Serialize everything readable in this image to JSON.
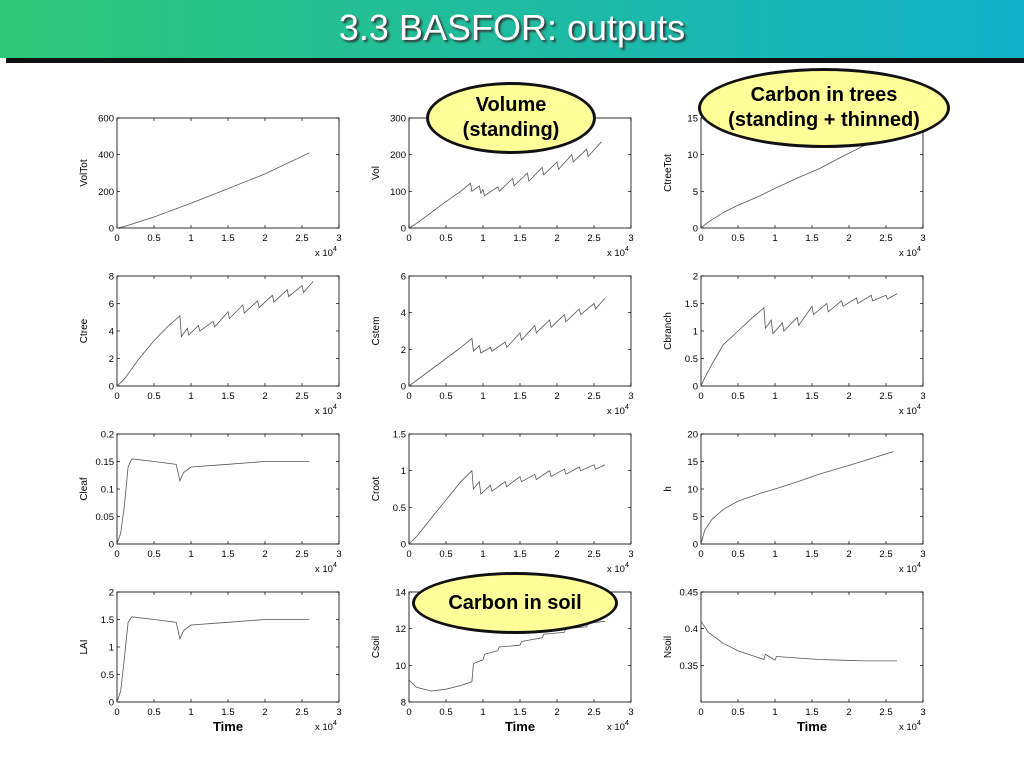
{
  "slide": {
    "title": "3.3 BASFOR: outputs",
    "header_color_left": "#2ec878",
    "header_color_right": "#10b0c8",
    "callouts": [
      {
        "id": "volume",
        "text": "Volume\n(standing)"
      },
      {
        "id": "carbon-trees",
        "text": "Carbon in trees\n(standing + thinned)"
      },
      {
        "id": "carbon-soil",
        "text": "Carbon in soil"
      }
    ]
  },
  "chart_data": [
    {
      "type": "line",
      "ylabel": "VolTot",
      "xlabel": "",
      "xlim": [
        0,
        3
      ],
      "x_multiplier": "x 10^4",
      "ylim": [
        0,
        600
      ],
      "yticks": [
        0,
        200,
        400,
        600
      ],
      "series": [
        {
          "x": [
            0,
            0.1,
            0.5,
            1,
            1.5,
            2,
            2.6
          ],
          "y": [
            0,
            8,
            60,
            135,
            215,
            295,
            410
          ]
        }
      ]
    },
    {
      "type": "line",
      "ylabel": "Vol",
      "xlabel": "",
      "xlim": [
        0,
        3
      ],
      "x_multiplier": "x 10^4",
      "ylim": [
        0,
        300
      ],
      "yticks": [
        0,
        100,
        200,
        300
      ],
      "series": [
        {
          "x": [
            0,
            0.1,
            0.3,
            0.5,
            0.7,
            0.83,
            0.85,
            0.95,
            0.97,
            1.0,
            1.02,
            1.2,
            1.22,
            1.4,
            1.42,
            1.6,
            1.62,
            1.8,
            1.82,
            2.0,
            2.02,
            2.2,
            2.22,
            2.4,
            2.42,
            2.6
          ],
          "y": [
            0,
            12,
            42,
            72,
            100,
            122,
            100,
            115,
            95,
            105,
            88,
            112,
            100,
            135,
            115,
            150,
            128,
            165,
            145,
            180,
            160,
            200,
            180,
            215,
            195,
            235
          ]
        }
      ]
    },
    {
      "type": "line",
      "ylabel": "CtreeTot",
      "xlabel": "",
      "xlim": [
        0,
        3
      ],
      "x_multiplier": "x 10^4",
      "ylim": [
        0,
        15
      ],
      "yticks": [
        0,
        5,
        10,
        15
      ],
      "series": [
        {
          "x": [
            0,
            0.1,
            0.3,
            0.5,
            0.8,
            1.0,
            1.3,
            1.6,
            1.9,
            2.2,
            2.6
          ],
          "y": [
            0,
            0.8,
            2.1,
            3.1,
            4.4,
            5.4,
            6.8,
            8.1,
            9.7,
            11.2,
            12.3
          ]
        }
      ]
    },
    {
      "type": "line",
      "ylabel": "Ctree",
      "xlabel": "",
      "xlim": [
        0,
        3
      ],
      "x_multiplier": "x 10^4",
      "ylim": [
        0,
        8
      ],
      "yticks": [
        0,
        2,
        4,
        6,
        8
      ],
      "series": [
        {
          "x": [
            0,
            0.1,
            0.3,
            0.5,
            0.7,
            0.85,
            0.87,
            0.95,
            0.97,
            1.1,
            1.12,
            1.3,
            1.32,
            1.5,
            1.52,
            1.7,
            1.72,
            1.9,
            1.92,
            2.1,
            2.12,
            2.3,
            2.32,
            2.5,
            2.52,
            2.65
          ],
          "y": [
            0,
            0.5,
            2.0,
            3.3,
            4.4,
            5.1,
            3.6,
            4.2,
            3.7,
            4.4,
            4.0,
            4.7,
            4.3,
            5.4,
            4.9,
            5.9,
            5.3,
            6.2,
            5.7,
            6.6,
            6.1,
            7.0,
            6.5,
            7.3,
            6.8,
            7.6
          ]
        }
      ]
    },
    {
      "type": "line",
      "ylabel": "Cstem",
      "xlabel": "",
      "xlim": [
        0,
        3
      ],
      "x_multiplier": "x 10^4",
      "ylim": [
        0,
        6
      ],
      "yticks": [
        0,
        2,
        4,
        6
      ],
      "series": [
        {
          "x": [
            0,
            0.1,
            0.3,
            0.5,
            0.7,
            0.85,
            0.87,
            0.95,
            0.97,
            1.1,
            1.12,
            1.3,
            1.32,
            1.5,
            1.52,
            1.7,
            1.72,
            1.9,
            1.92,
            2.1,
            2.12,
            2.3,
            2.32,
            2.5,
            2.52,
            2.65
          ],
          "y": [
            0,
            0.3,
            0.9,
            1.5,
            2.1,
            2.6,
            1.9,
            2.2,
            1.8,
            2.1,
            1.9,
            2.4,
            2.1,
            2.9,
            2.5,
            3.3,
            2.9,
            3.6,
            3.2,
            3.9,
            3.5,
            4.2,
            3.9,
            4.5,
            4.2,
            4.8
          ]
        }
      ]
    },
    {
      "type": "line",
      "ylabel": "Cbranch",
      "xlabel": "",
      "xlim": [
        0,
        3
      ],
      "x_multiplier": "x 10^4",
      "ylim": [
        0,
        2
      ],
      "yticks": [
        0,
        0.5,
        1,
        1.5,
        2
      ],
      "series": [
        {
          "x": [
            0,
            0.05,
            0.15,
            0.3,
            0.5,
            0.7,
            0.85,
            0.87,
            0.95,
            0.97,
            1.1,
            1.12,
            1.3,
            1.32,
            1.5,
            1.52,
            1.7,
            1.72,
            1.9,
            1.92,
            2.1,
            2.12,
            2.3,
            2.32,
            2.5,
            2.52,
            2.65
          ],
          "y": [
            0,
            0.15,
            0.4,
            0.75,
            1.0,
            1.25,
            1.42,
            1.05,
            1.2,
            0.95,
            1.15,
            1.0,
            1.25,
            1.1,
            1.45,
            1.3,
            1.5,
            1.35,
            1.55,
            1.45,
            1.6,
            1.5,
            1.65,
            1.55,
            1.65,
            1.58,
            1.68
          ]
        }
      ]
    },
    {
      "type": "line",
      "ylabel": "Cleaf",
      "xlabel": "",
      "xlim": [
        0,
        3
      ],
      "x_multiplier": "x 10^4",
      "ylim": [
        0,
        0.2
      ],
      "yticks": [
        0,
        0.05,
        0.1,
        0.15,
        0.2
      ],
      "series": [
        {
          "x": [
            0,
            0.05,
            0.1,
            0.15,
            0.2,
            0.5,
            0.8,
            0.85,
            0.9,
            1.0,
            1.5,
            2.0,
            2.6
          ],
          "y": [
            0,
            0.02,
            0.07,
            0.14,
            0.155,
            0.15,
            0.145,
            0.115,
            0.13,
            0.14,
            0.145,
            0.15,
            0.15
          ]
        }
      ]
    },
    {
      "type": "line",
      "ylabel": "Croot",
      "xlabel": "",
      "xlim": [
        0,
        3
      ],
      "x_multiplier": "x 10^4",
      "ylim": [
        0,
        1.5
      ],
      "yticks": [
        0,
        0.5,
        1,
        1.5
      ],
      "series": [
        {
          "x": [
            0,
            0.1,
            0.3,
            0.5,
            0.7,
            0.85,
            0.87,
            0.95,
            0.97,
            1.1,
            1.12,
            1.3,
            1.32,
            1.5,
            1.52,
            1.7,
            1.72,
            1.9,
            1.92,
            2.1,
            2.12,
            2.3,
            2.32,
            2.5,
            2.52,
            2.65
          ],
          "y": [
            0,
            0.1,
            0.35,
            0.6,
            0.85,
            1.0,
            0.75,
            0.85,
            0.68,
            0.8,
            0.72,
            0.85,
            0.78,
            0.92,
            0.85,
            0.95,
            0.88,
            1.0,
            0.92,
            1.02,
            0.95,
            1.05,
            1.0,
            1.08,
            1.02,
            1.08
          ]
        }
      ]
    },
    {
      "type": "line",
      "ylabel": "h",
      "xlabel": "",
      "xlim": [
        0,
        3
      ],
      "x_multiplier": "x 10^4",
      "ylim": [
        0,
        20
      ],
      "yticks": [
        0,
        5,
        10,
        15,
        20
      ],
      "series": [
        {
          "x": [
            0,
            0.05,
            0.15,
            0.3,
            0.5,
            0.8,
            1.0,
            1.3,
            1.6,
            2.0,
            2.6
          ],
          "y": [
            0,
            2.5,
            4.5,
            6.3,
            7.8,
            9.2,
            10.0,
            11.3,
            12.7,
            14.3,
            16.8
          ]
        }
      ]
    },
    {
      "type": "line",
      "ylabel": "LAI",
      "xlabel": "Time",
      "xlim": [
        0,
        3
      ],
      "x_multiplier": "x 10^4",
      "ylim": [
        0,
        2
      ],
      "yticks": [
        0,
        0.5,
        1,
        1.5,
        2
      ],
      "series": [
        {
          "x": [
            0,
            0.05,
            0.1,
            0.15,
            0.2,
            0.5,
            0.8,
            0.85,
            0.9,
            1.0,
            1.5,
            2.0,
            2.6
          ],
          "y": [
            0,
            0.2,
            0.8,
            1.45,
            1.55,
            1.5,
            1.45,
            1.15,
            1.3,
            1.4,
            1.45,
            1.5,
            1.5
          ]
        }
      ]
    },
    {
      "type": "line",
      "ylabel": "Csoil",
      "xlabel": "Time",
      "xlim": [
        0,
        3
      ],
      "x_multiplier": "x 10^4",
      "ylim": [
        8,
        14
      ],
      "yticks": [
        8,
        10,
        12,
        14
      ],
      "series": [
        {
          "x": [
            0,
            0.1,
            0.3,
            0.5,
            0.7,
            0.85,
            0.87,
            1.0,
            1.02,
            1.2,
            1.22,
            1.5,
            1.52,
            1.8,
            1.82,
            2.1,
            2.12,
            2.4,
            2.42,
            2.65
          ],
          "y": [
            9.2,
            8.8,
            8.6,
            8.7,
            8.9,
            9.1,
            10.1,
            10.3,
            10.6,
            10.8,
            11.0,
            11.1,
            11.3,
            11.5,
            11.7,
            11.8,
            12.0,
            12.1,
            12.3,
            12.4
          ]
        }
      ]
    },
    {
      "type": "line",
      "ylabel": "Nsoil",
      "xlabel": "Time",
      "xlim": [
        0,
        3
      ],
      "x_multiplier": "x 10^4",
      "ylim": [
        0.3,
        0.45
      ],
      "yticks": [
        0.35,
        0.4,
        0.45
      ],
      "series": [
        {
          "x": [
            0,
            0.1,
            0.3,
            0.5,
            0.7,
            0.85,
            0.87,
            0.95,
            1.0,
            1.02,
            1.3,
            1.6,
            1.9,
            2.2,
            2.5,
            2.65
          ],
          "y": [
            0.41,
            0.395,
            0.38,
            0.37,
            0.363,
            0.358,
            0.365,
            0.36,
            0.357,
            0.362,
            0.36,
            0.358,
            0.357,
            0.356,
            0.356,
            0.356
          ]
        }
      ]
    }
  ]
}
